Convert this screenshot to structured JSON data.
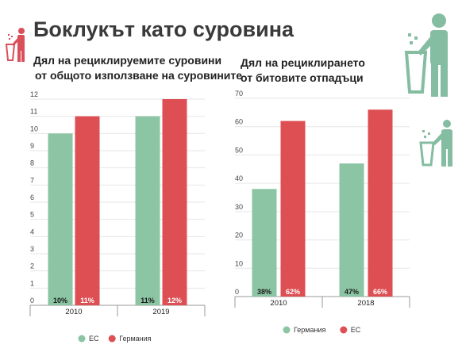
{
  "header": {
    "title": "Боклукът като суровина"
  },
  "colors": {
    "green": "#8cc5a3",
    "red": "#dd4f53",
    "icon_red": "#d9505a",
    "icon_green": "#84bda2"
  },
  "icons": [
    "trash-person-icon",
    "trash-person-icon",
    "trash-person-icon"
  ],
  "chart_data": [
    {
      "type": "bar",
      "title_lines": [
        "Дял на рециклируемите суровини",
        "от общото използване на суровините"
      ],
      "categories": [
        "2010",
        "2019"
      ],
      "series": [
        {
          "name": "ЕС",
          "color": "#8cc5a3",
          "values": [
            10,
            11
          ],
          "labels": [
            "10%",
            "11%"
          ]
        },
        {
          "name": "Германия",
          "color": "#dd4f53",
          "values": [
            11,
            12
          ],
          "labels": [
            "11%",
            "12%"
          ]
        }
      ],
      "yticks": [
        "0",
        "1",
        "2",
        "3",
        "4",
        "5",
        "6",
        "7",
        "8",
        "9",
        "10",
        "11",
        "12"
      ],
      "ylim": [
        0,
        12
      ],
      "grid": true,
      "legend_position": "bottom"
    },
    {
      "type": "bar",
      "title_lines": [
        "Дял на рециклирането",
        "от битовите отпадъци"
      ],
      "categories": [
        "2010",
        "2018"
      ],
      "series": [
        {
          "name": "Германия",
          "color": "#8cc5a3",
          "values": [
            38,
            47
          ],
          "labels": [
            "38%",
            "47%"
          ]
        },
        {
          "name": "ЕС",
          "color": "#dd4f53",
          "values": [
            62,
            66
          ],
          "labels": [
            "62%",
            "66%"
          ]
        }
      ],
      "yticks": [
        "0",
        "10",
        "20",
        "30",
        "40",
        "50",
        "60",
        "70"
      ],
      "ylim": [
        0,
        70
      ],
      "grid": true,
      "legend_position": "bottom"
    }
  ]
}
